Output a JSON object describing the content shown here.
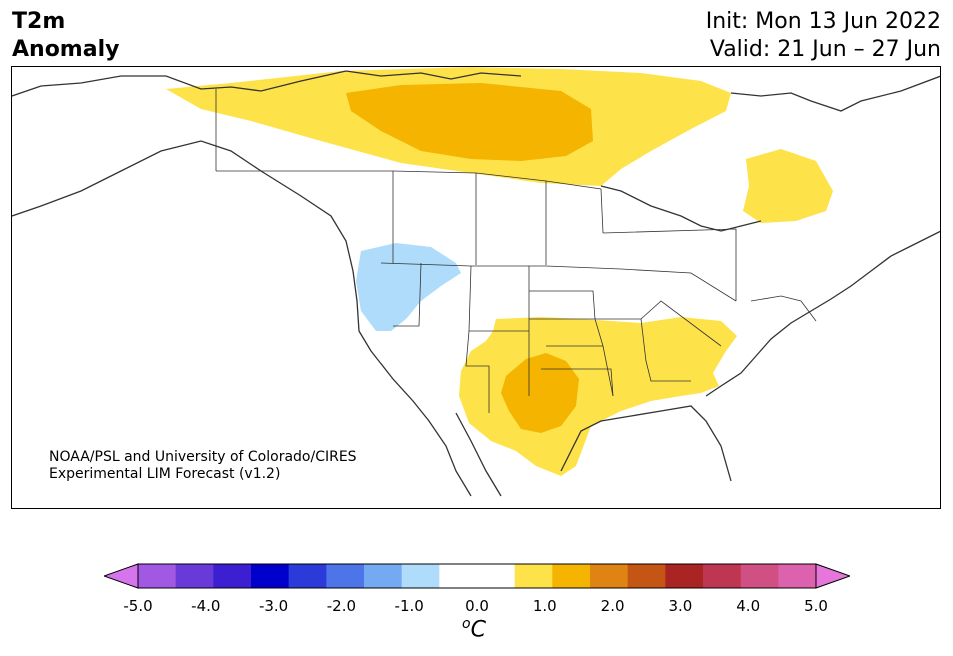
{
  "title": {
    "variable": "T2m",
    "subtitle": "Anomaly",
    "init": "Init: Mon 13 Jun 2022",
    "valid": "Valid: 21 Jun – 27 Jun"
  },
  "credit": {
    "line1": "NOAA/PSL and University of Colorado/CIRES",
    "line2": "Experimental LIM Forecast (v1.2)"
  },
  "colorbar": {
    "units_symbol": "o",
    "units_letter": "C",
    "tick_labels": [
      "-5.0",
      "-4.0",
      "-3.0",
      "-2.0",
      "-1.0",
      "0.0",
      "1.0",
      "2.0",
      "3.0",
      "4.0",
      "5.0"
    ],
    "under_color": "#d574ec",
    "over_color": "#e676da",
    "bins": [
      "#a158e3",
      "#6a39d9",
      "#3b1fd0",
      "#0000cc",
      "#2b3bd9",
      "#4d74e8",
      "#74aaf1",
      "#aedcfa",
      "#ffffff",
      "#ffffff",
      "#fee24a",
      "#f4b400",
      "#df8412",
      "#c55515",
      "#aa2424",
      "#be3651",
      "#d05083",
      "#dc62ad"
    ]
  },
  "map": {
    "anomaly_regions": [
      {
        "name": "northern-canada-warm",
        "color": "#fee24a"
      },
      {
        "name": "northern-canada-hot",
        "color": "#f4b400"
      },
      {
        "name": "quebec-labrador-warm",
        "color": "#fee24a"
      },
      {
        "name": "pacific-northwest-cool",
        "color": "#aedcfa"
      },
      {
        "name": "central-us-warm",
        "color": "#fee24a"
      },
      {
        "name": "southern-plains-hot",
        "color": "#f4b400"
      }
    ]
  }
}
